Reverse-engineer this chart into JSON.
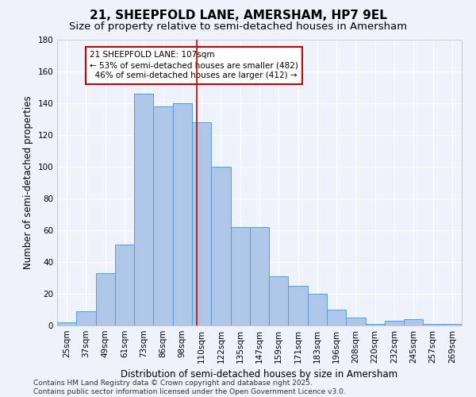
{
  "title": "21, SHEEPFOLD LANE, AMERSHAM, HP7 9EL",
  "subtitle": "Size of property relative to semi-detached houses in Amersham",
  "xlabel": "Distribution of semi-detached houses by size in Amersham",
  "ylabel": "Number of semi-detached properties",
  "categories": [
    "25sqm",
    "37sqm",
    "49sqm",
    "61sqm",
    "73sqm",
    "86sqm",
    "98sqm",
    "110sqm",
    "122sqm",
    "135sqm",
    "147sqm",
    "159sqm",
    "171sqm",
    "183sqm",
    "196sqm",
    "208sqm",
    "220sqm",
    "232sqm",
    "245sqm",
    "257sqm",
    "269sqm"
  ],
  "values": [
    2,
    9,
    33,
    51,
    146,
    138,
    140,
    128,
    100,
    62,
    62,
    31,
    25,
    20,
    10,
    5,
    1,
    3,
    4,
    1,
    1
  ],
  "bar_color": "#aec6e8",
  "bar_edge_color": "#5b9bd5",
  "annotation_label": "21 SHEEPFOLD LANE: 107sqm",
  "pct_smaller": 53,
  "n_smaller": 482,
  "pct_larger": 46,
  "n_larger": 412,
  "annotation_box_color": "#ffffff",
  "annotation_box_edge": "#cc0000",
  "vline_color": "#cc0000",
  "footer_line1": "Contains HM Land Registry data © Crown copyright and database right 2025.",
  "footer_line2": "Contains public sector information licensed under the Open Government Licence v3.0.",
  "ylim": [
    0,
    180
  ],
  "yticks": [
    0,
    20,
    40,
    60,
    80,
    100,
    120,
    140,
    160,
    180
  ],
  "bg_color": "#eef2fa",
  "grid_color": "#ffffff",
  "title_fontsize": 11,
  "subtitle_fontsize": 9.5,
  "axis_label_fontsize": 8.5,
  "tick_fontsize": 7.5,
  "annotation_fontsize": 7.5,
  "footer_fontsize": 6.5
}
